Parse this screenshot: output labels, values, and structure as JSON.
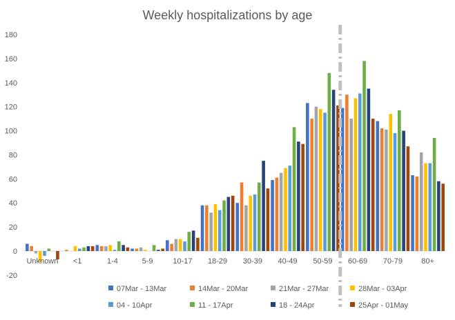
{
  "chart_data": {
    "type": "bar",
    "title": "Weekly hospitalizations by age",
    "xlabel": "",
    "ylabel": "",
    "ylim": [
      -20,
      180
    ],
    "yticks": [
      -20,
      0,
      20,
      40,
      60,
      80,
      100,
      120,
      140,
      160,
      180
    ],
    "grid": false,
    "legend_position": "bottom",
    "categories": [
      "Unknown",
      "<1",
      "1-4",
      "5-9",
      "10-17",
      "18-29",
      "30-39",
      "40-49",
      "50-59",
      "60-69",
      "70-79",
      "80+"
    ],
    "divider_after_category": "50-59",
    "divider_color": "#bfbfbf",
    "series": [
      {
        "name": "07Mar - 13Mar",
        "color": "#4472c4",
        "values": [
          6,
          0,
          5,
          2,
          9,
          38,
          40,
          59,
          123,
          119,
          108,
          63
        ]
      },
      {
        "name": "14Mar - 20Mar",
        "color": "#ed7d31",
        "values": [
          4,
          1,
          4,
          2,
          6,
          38,
          57,
          61,
          110,
          130,
          102,
          62
        ]
      },
      {
        "name": "21Mar - 27Mar",
        "color": "#a5a5a5",
        "values": [
          -2,
          0,
          4,
          3,
          10,
          32,
          38,
          65,
          120,
          110,
          101,
          82
        ]
      },
      {
        "name": "28Mar - 03Apr",
        "color": "#ffc000",
        "values": [
          -9,
          4,
          5,
          1,
          10,
          39,
          46,
          69,
          118,
          127,
          114,
          73
        ]
      },
      {
        "name": "04 - 10Apr",
        "color": "#5b9bd5",
        "values": [
          -4,
          2,
          1,
          0,
          8,
          34,
          47,
          71,
          115,
          131,
          98,
          73
        ]
      },
      {
        "name": "11 - 17Apr",
        "color": "#70ad47",
        "values": [
          2,
          3,
          8,
          5,
          16,
          42,
          57,
          103,
          148,
          158,
          117,
          94
        ]
      },
      {
        "name": "18 - 24Apr",
        "color": "#264478",
        "values": [
          0,
          4,
          5,
          1,
          17,
          45,
          75,
          91,
          134,
          135,
          100,
          58
        ]
      },
      {
        "name": "25Apr - 01May",
        "color": "#9e480e",
        "values": [
          -7,
          4,
          3,
          2,
          11,
          46,
          52,
          89,
          121,
          110,
          87,
          56
        ]
      }
    ]
  }
}
